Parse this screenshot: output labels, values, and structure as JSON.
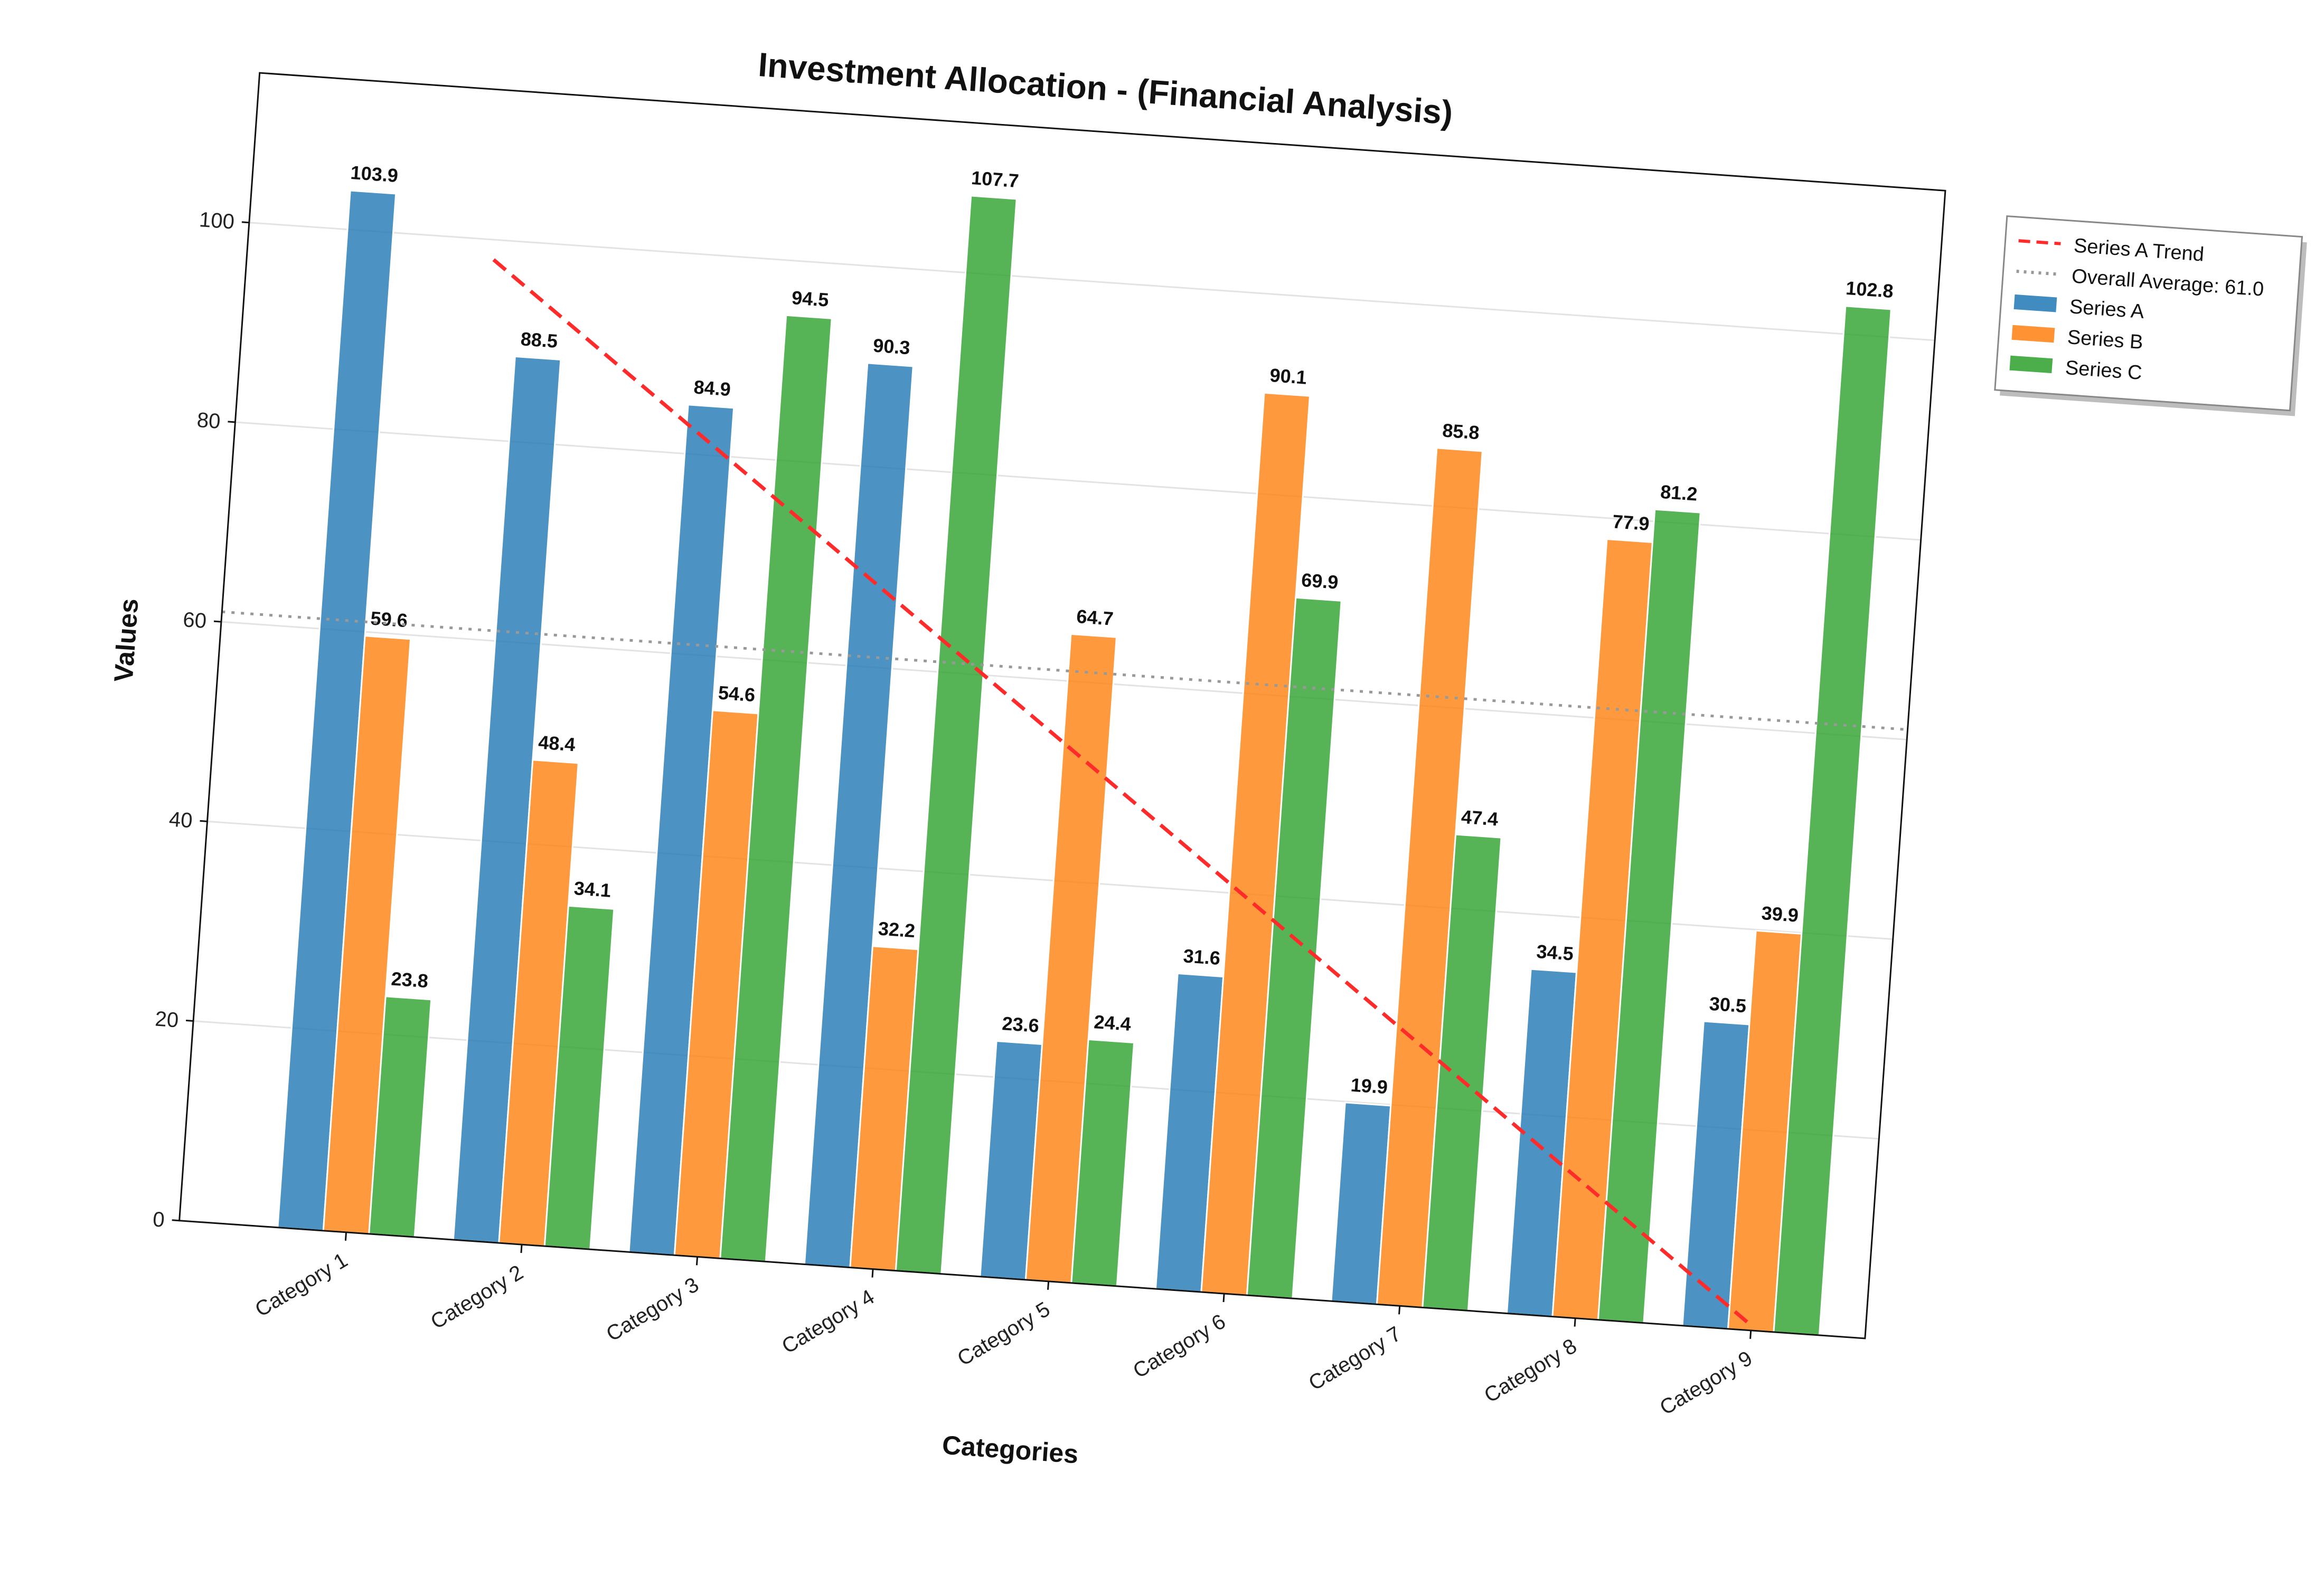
{
  "chart_data": {
    "type": "bar",
    "title": "Investment Allocation - (Financial Analysis)",
    "xlabel": "Categories",
    "ylabel": "Values",
    "ylim": [
      0,
      115
    ],
    "yticks": [
      0,
      20,
      40,
      60,
      80,
      100
    ],
    "grid": true,
    "legend_position": "outside-right",
    "categories": [
      "Category 1",
      "Category 2",
      "Category 3",
      "Category 4",
      "Category 5",
      "Category 6",
      "Category 7",
      "Category 8",
      "Category 9"
    ],
    "series": [
      {
        "name": "Series A",
        "color": "#1f77b4",
        "values": [
          103.9,
          88.5,
          84.9,
          90.3,
          23.6,
          31.6,
          19.9,
          34.5,
          30.5
        ]
      },
      {
        "name": "Series B",
        "color": "#ff7f0e",
        "values": [
          59.6,
          48.4,
          54.6,
          32.2,
          64.7,
          90.1,
          85.8,
          77.9,
          39.9
        ]
      },
      {
        "name": "Series C",
        "color": "#2ca02c",
        "values": [
          23.8,
          34.1,
          94.5,
          107.7,
          24.4,
          69.9,
          47.4,
          81.2,
          102.8
        ]
      }
    ],
    "trend_line": {
      "name": "Series A Trend",
      "color": "#ff2a2a",
      "start": 98.0,
      "end": 0.5
    },
    "average_line": {
      "name": "Overall Average: 61.0",
      "color": "#999999",
      "value": 61.0
    }
  }
}
